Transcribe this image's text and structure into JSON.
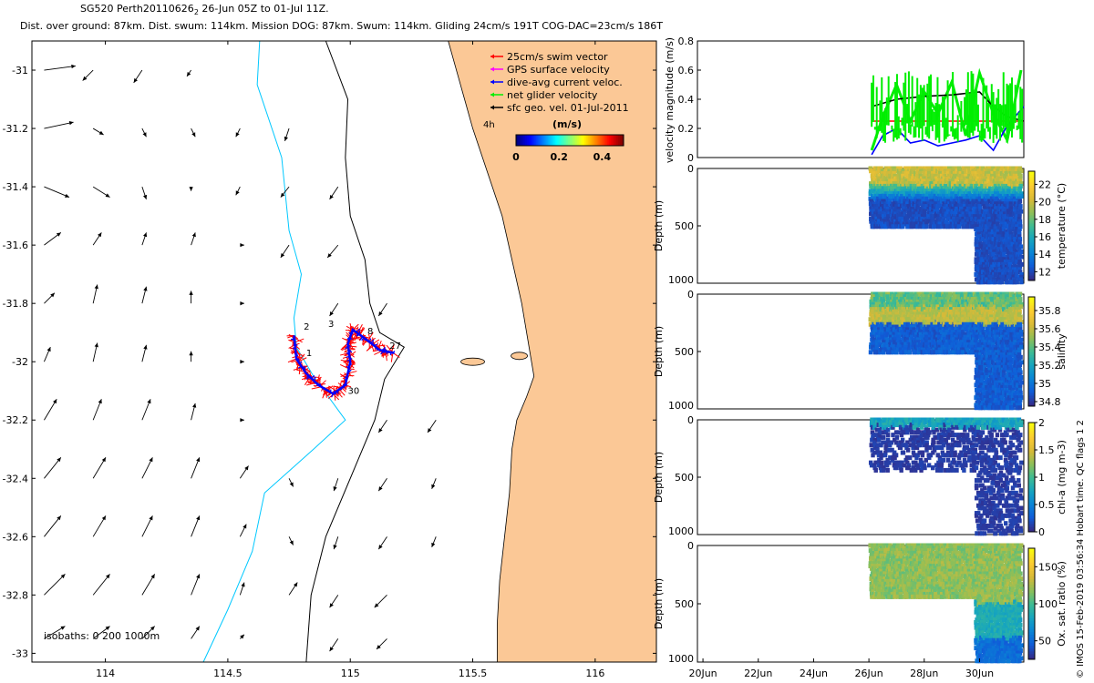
{
  "header": {
    "title_main": "SG520 Perth20110626",
    "title_sub": "2",
    "title_range": " 26-Jun 05Z to 01-Jul 11Z.",
    "subtitle": "Dist. over ground: 87km. Dist. swum: 114km. Mission DOG: 87km. Swum: 114km. Gliding 24cm/s 191T COG-DAC=23cm/s 186T"
  },
  "credit": "© IMOS 15-Feb-2019 03:56:34 Hobart time. QC flags 1  2",
  "colors": {
    "land": "#fbc896",
    "coast": "#000000",
    "isobath_200": "#000000",
    "isobath_1000": "#00c8ff",
    "swim": "#ff0000",
    "dac": "#0000ff",
    "net": "#00ee00",
    "geo": "#000000",
    "gps": "#ff00ff"
  },
  "chart_data": [
    {
      "type": "map",
      "xlim": [
        113.7,
        116.25
      ],
      "ylim": [
        -33.03,
        -30.9
      ],
      "xticks": [
        114,
        114.5,
        115,
        115.5,
        116
      ],
      "xtick_labels": [
        "114",
        "114.5",
        "115",
        "115.5",
        "116"
      ],
      "yticks": [
        -31,
        -31.2,
        -31.4,
        -31.6,
        -31.8,
        -32,
        -32.2,
        -32.4,
        -32.6,
        -32.8,
        -33
      ],
      "ytick_labels": [
        "-31",
        "-31.2",
        "-31.4",
        "-31.6",
        "-31.8",
        "-32",
        "-32.2",
        "-32.4",
        "-32.6",
        "-32.8",
        "-33"
      ],
      "legend": {
        "placement": "top-right",
        "entries": [
          "25cm/s swim vector",
          "GPS surface velocity",
          "dive-avg current veloc.",
          "net glider velocity",
          "sfc geo. vel. 01-Jul-2011"
        ]
      },
      "legend_scale_label": "4h",
      "colorbar": {
        "label": "(m/s)",
        "ticks": [
          0,
          0.2,
          0.4
        ],
        "tick_labels": [
          "0",
          "0.2",
          "0.4"
        ],
        "range": [
          0,
          0.5
        ]
      },
      "isobath_label": "isobaths: 0   200   1000m",
      "track_labels": [
        {
          "text": "1",
          "lon": 114.82,
          "lat": -31.98
        },
        {
          "text": "2",
          "lon": 114.81,
          "lat": -31.89
        },
        {
          "text": "3",
          "lon": 114.91,
          "lat": -31.88
        },
        {
          "text": "8",
          "lon": 115.07,
          "lat": -31.905
        },
        {
          "text": "27",
          "lon": 115.16,
          "lat": -31.955
        },
        {
          "text": "30",
          "lon": 114.99,
          "lat": -32.11
        }
      ],
      "track_points": [
        [
          114.77,
          -31.91
        ],
        [
          114.78,
          -31.99
        ],
        [
          114.82,
          -32.04
        ],
        [
          114.87,
          -32.08
        ],
        [
          114.93,
          -32.11
        ],
        [
          114.98,
          -32.08
        ],
        [
          115.0,
          -32.0
        ],
        [
          114.99,
          -31.94
        ],
        [
          115.01,
          -31.89
        ],
        [
          115.06,
          -31.92
        ],
        [
          115.12,
          -31.96
        ],
        [
          115.18,
          -31.97
        ]
      ],
      "geo_vectors": {
        "lons": [
          113.75,
          113.95,
          114.15,
          114.35,
          114.55,
          114.75,
          114.95,
          115.15,
          115.35,
          115.55
        ],
        "lats": [
          -31.0,
          -31.2,
          -31.4,
          -31.6,
          -31.8,
          -32.0,
          -32.2,
          -32.4,
          -32.6,
          -32.8,
          -32.95
        ],
        "u": [
          [
            0.15,
            -0.05,
            -0.04,
            -0.02,
            0,
            0,
            0,
            0,
            0,
            0
          ],
          [
            0.14,
            0.05,
            0.02,
            0.02,
            -0.02,
            -0.02,
            0,
            0,
            0,
            0
          ],
          [
            0.12,
            0.08,
            0.02,
            0.0,
            -0.02,
            -0.04,
            -0.04,
            0,
            0,
            0
          ],
          [
            0.08,
            0.04,
            0.02,
            0.02,
            0.02,
            -0.04,
            -0.05,
            0,
            0,
            0
          ],
          [
            0.05,
            0.02,
            0.02,
            0.0,
            0.02,
            0,
            -0.04,
            -0.04,
            0,
            0
          ],
          [
            0.03,
            0.02,
            0.02,
            0.0,
            0.02,
            0,
            0,
            0,
            0,
            0
          ],
          [
            0.06,
            0.04,
            0.04,
            0.02,
            0.02,
            0,
            0,
            -0.04,
            -0.04,
            0
          ],
          [
            0.08,
            0.06,
            0.05,
            0.04,
            0.04,
            0.02,
            -0.02,
            -0.04,
            -0.02,
            0
          ],
          [
            0.08,
            0.06,
            0.05,
            0.04,
            0.03,
            0.02,
            -0.02,
            -0.04,
            -0.02,
            0
          ],
          [
            0.1,
            0.08,
            0.06,
            0.04,
            0.02,
            0.04,
            -0.04,
            -0.06,
            0,
            0
          ],
          [
            0.1,
            0.08,
            0.06,
            0.04,
            0.02,
            0,
            -0.04,
            -0.05,
            0,
            0
          ]
        ],
        "v": [
          [
            0.02,
            -0.05,
            -0.06,
            -0.03,
            0,
            0,
            0,
            0,
            0,
            0
          ],
          [
            0.03,
            -0.03,
            -0.04,
            -0.04,
            -0.04,
            -0.06,
            0,
            0,
            0,
            0
          ],
          [
            -0.05,
            -0.05,
            -0.06,
            -0.02,
            -0.04,
            -0.05,
            -0.06,
            0,
            0,
            0
          ],
          [
            0.06,
            0.06,
            0.06,
            0.06,
            0.0,
            -0.06,
            -0.06,
            0,
            0,
            0
          ],
          [
            0.05,
            0.09,
            0.08,
            0.06,
            0.0,
            0,
            -0.06,
            -0.06,
            0,
            0
          ],
          [
            0.07,
            0.09,
            0.08,
            0.05,
            0.0,
            0,
            0,
            0,
            0,
            0
          ],
          [
            0.1,
            0.1,
            0.1,
            0.08,
            0.0,
            0,
            0,
            -0.06,
            -0.06,
            0
          ],
          [
            0.1,
            0.1,
            0.1,
            0.1,
            0.06,
            -0.04,
            -0.06,
            -0.06,
            -0.05,
            0
          ],
          [
            0.1,
            0.1,
            0.1,
            0.1,
            0.06,
            -0.04,
            -0.06,
            -0.06,
            -0.05,
            0
          ],
          [
            0.1,
            0.1,
            0.1,
            0.1,
            0.06,
            0.06,
            -0.06,
            -0.06,
            0,
            0
          ],
          [
            0.06,
            0.06,
            0.06,
            0.06,
            0.02,
            0,
            -0.06,
            -0.05,
            0,
            0
          ]
        ]
      }
    },
    {
      "type": "line",
      "ylabel": "velocity magnitude (m/s)",
      "ylim": [
        0,
        0.8
      ],
      "yticks": [
        0,
        0.2,
        0.4,
        0.6,
        0.8
      ],
      "ytick_labels": [
        "0",
        "0.2",
        "0.4",
        "0.6",
        "0.8"
      ],
      "xlim_days": [
        19.8,
        31.6
      ],
      "series": [
        {
          "name": "swim",
          "color": "#ff0000",
          "x": [
            26.1,
            31.6
          ],
          "y": [
            0.25,
            0.25
          ]
        },
        {
          "name": "net",
          "color": "#00ee00",
          "x": [
            26.1,
            26.5,
            27.0,
            27.5,
            28.0,
            28.5,
            29.0,
            29.5,
            30.0,
            30.5,
            31.0,
            31.5
          ],
          "y": [
            0.05,
            0.28,
            0.5,
            0.25,
            0.45,
            0.3,
            0.52,
            0.15,
            0.58,
            0.3,
            0.12,
            0.6
          ]
        },
        {
          "name": "dac",
          "color": "#0000ff",
          "x": [
            26.1,
            26.5,
            27.0,
            27.5,
            28.0,
            28.5,
            29.0,
            29.5,
            30.0,
            30.5,
            31.0,
            31.6
          ],
          "y": [
            0.02,
            0.15,
            0.2,
            0.1,
            0.12,
            0.08,
            0.1,
            0.12,
            0.15,
            0.05,
            0.22,
            0.35
          ]
        },
        {
          "name": "geo",
          "color": "#000000",
          "x": [
            26.1,
            27.0,
            28.0,
            29.0,
            30.0,
            30.5,
            31.0,
            31.6
          ],
          "y": [
            0.35,
            0.4,
            0.42,
            0.43,
            0.45,
            0.35,
            0.28,
            0.25
          ]
        }
      ]
    },
    {
      "type": "heatmap",
      "ylabel": "Depth (m)",
      "yticks": [
        0,
        500,
        1000
      ],
      "ytick_labels": [
        "0",
        "500",
        "1000"
      ],
      "cbar_label": "temperature (°C)",
      "cbar_ticks": [
        "12",
        "14",
        "16",
        "18",
        "20",
        "22"
      ],
      "cbar_range": [
        11,
        23.5
      ],
      "colormap": "parula"
    },
    {
      "type": "heatmap",
      "ylabel": "Depth (m)",
      "yticks": [
        0,
        500,
        1000
      ],
      "ytick_labels": [
        "0",
        "500",
        "1000"
      ],
      "cbar_label": "salinity",
      "cbar_ticks": [
        "34.8",
        "35",
        "35.2",
        "35.4",
        "35.6",
        "35.8"
      ],
      "cbar_range": [
        34.75,
        35.95
      ],
      "colormap": "parula"
    },
    {
      "type": "heatmap",
      "ylabel": "Depth (m)",
      "yticks": [
        0,
        500,
        1000
      ],
      "ytick_labels": [
        "0",
        "500",
        "1000"
      ],
      "cbar_label": "chl-a (mg m-3)",
      "cbar_ticks": [
        "0",
        "0.5",
        "1",
        "1.5",
        "2"
      ],
      "cbar_range": [
        0,
        2
      ],
      "colormap": "parula"
    },
    {
      "type": "heatmap",
      "ylabel": "Depth (m)",
      "yticks": [
        0,
        500,
        1000
      ],
      "ytick_labels": [
        "0",
        "500",
        "1000"
      ],
      "cbar_label": "Ox. sat. ratio (%)",
      "cbar_ticks": [
        "50",
        "100",
        "150"
      ],
      "cbar_range": [
        25,
        175
      ],
      "colormap": "parula",
      "xticks_days": [
        20,
        22,
        24,
        26,
        28,
        30
      ],
      "xtick_labels": [
        "20Jun",
        "22Jun",
        "24Jun",
        "26Jun",
        "28Jun",
        "30Jun"
      ]
    }
  ]
}
